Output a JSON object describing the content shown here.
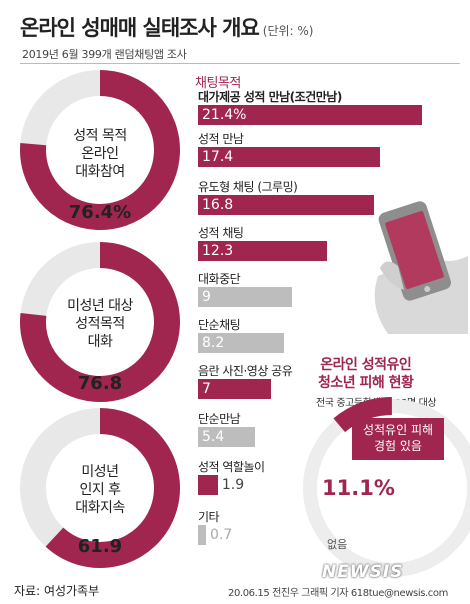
{
  "header": {
    "title": "온라인 성매매 실태조사 개요",
    "unit": "(단위: %)",
    "subtitle": "2019년 6월 399개 랜덤채팅앱 조사"
  },
  "donuts": [
    {
      "label": "성적 목적\n온라인\n대화참여",
      "value_text": "76.4%",
      "value": 76.4
    },
    {
      "label": "미성년 대상\n성적목적\n대화",
      "value_text": "76.8",
      "value": 76.8
    },
    {
      "label": "미성년\n인지 후\n대화지속",
      "value_text": "61.9",
      "value": 61.9
    }
  ],
  "chart_data": [
    {
      "type": "bar",
      "title": "채팅목적",
      "categories": [
        "대가제공 성적 만남(조건만남)",
        "성적 만남",
        "유도형 채팅 (그루밍)",
        "성적 채팅",
        "대화중단",
        "단순채팅",
        "음란 사진·영상 공유",
        "단순만남",
        "성적 역할놀이",
        "기타"
      ],
      "values": [
        21.4,
        17.4,
        16.8,
        12.3,
        9,
        8.2,
        7,
        5.4,
        1.9,
        0.7
      ],
      "value_labels": [
        "21.4%",
        "17.4",
        "16.8",
        "12.3",
        "9",
        "8.2",
        "7",
        "5.4",
        "1.9",
        "0.7"
      ],
      "highlight": [
        true,
        true,
        true,
        true,
        false,
        false,
        true,
        false,
        true,
        false
      ],
      "colors": {
        "highlight": "#a0264f",
        "muted": "#bdbdbd"
      }
    },
    {
      "type": "pie",
      "title": "온라인 성적유인 청소년 피해 현황",
      "subtitle": "전국 중고등학생 6423명 대상",
      "slices": [
        {
          "name": "성적유인 피해 경험 있음",
          "value": 11.1,
          "value_text": "11.1%"
        },
        {
          "name": "없음",
          "value": 88.9
        }
      ]
    }
  ],
  "footer": {
    "source": "자료: 여성가족부",
    "credit": "20.06.15 전진우 그래픽 기자 618tue@newsis.com",
    "logo": "NEWSIS"
  },
  "colors": {
    "accent": "#a0264f",
    "track": "#e8e8e8",
    "muted": "#bdbdbd"
  }
}
